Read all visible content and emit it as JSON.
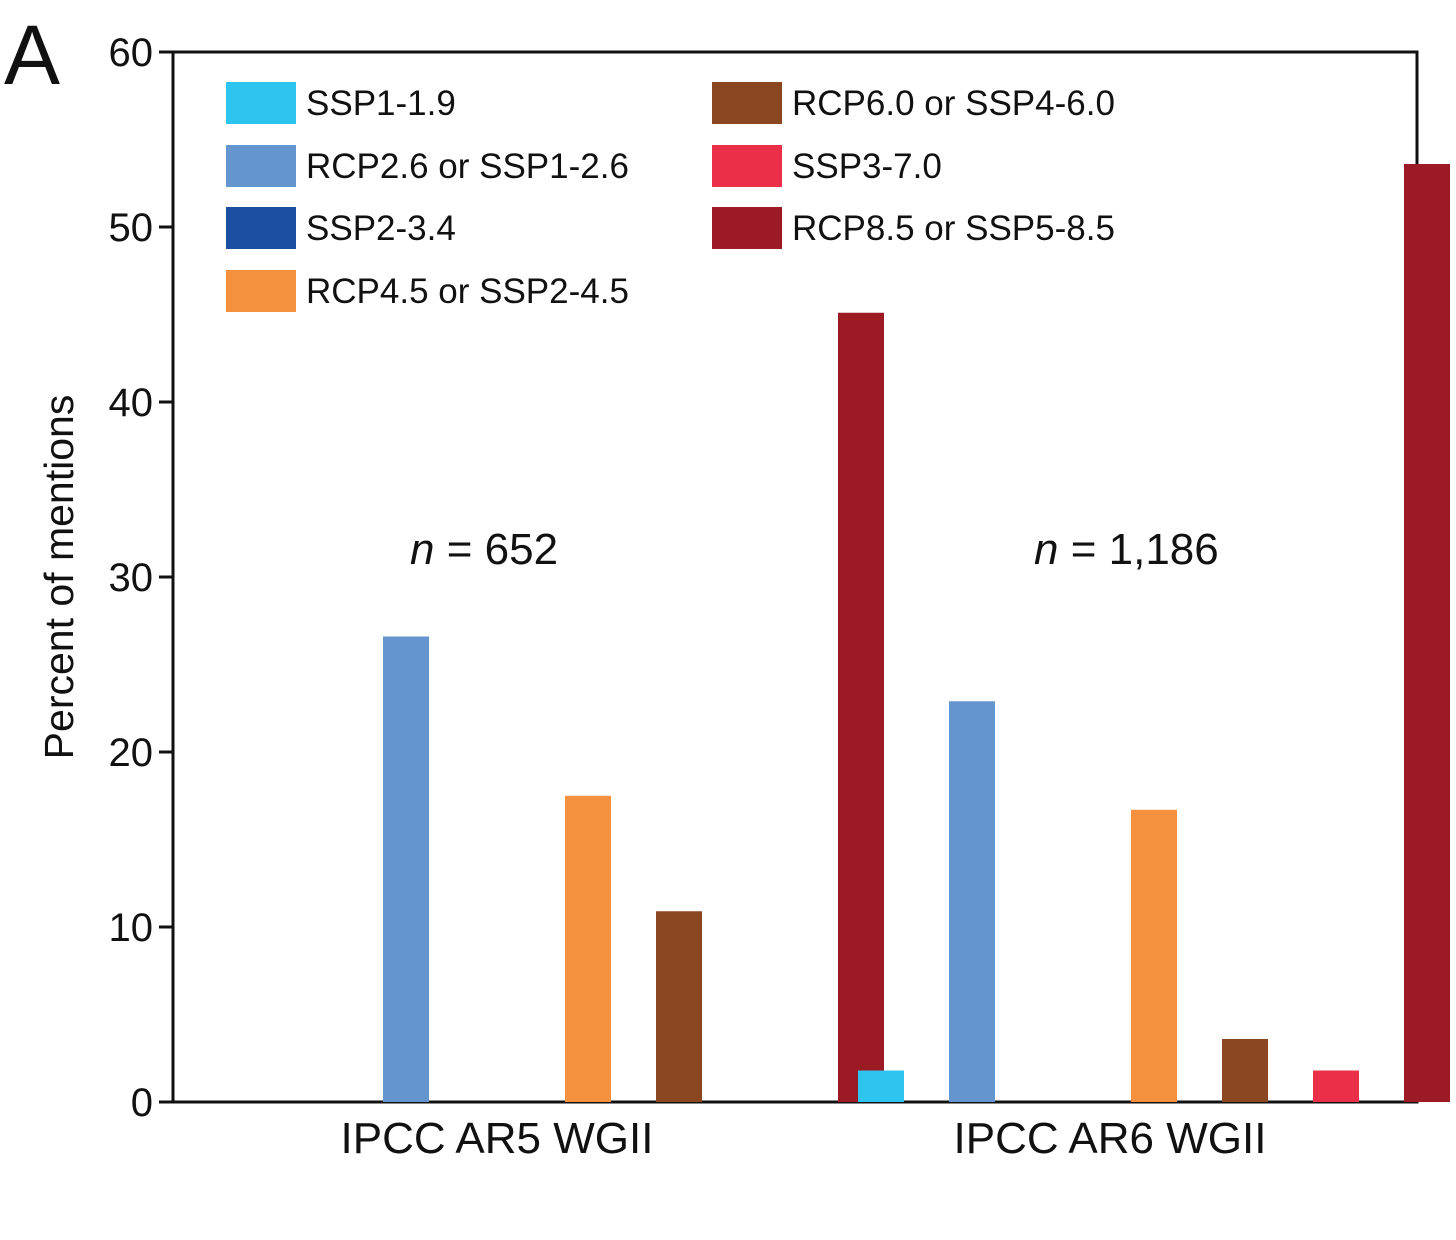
{
  "panel_letter": "A",
  "chart_data": {
    "type": "bar",
    "ylabel": "Percent of mentions",
    "xlabel": "",
    "ylim": [
      0,
      60
    ],
    "yticks": [
      0,
      10,
      20,
      30,
      40,
      50,
      60
    ],
    "grid": false,
    "legend_position": "top-left",
    "categories": [
      "IPCC AR5 WGII",
      "IPCC AR6 WGII"
    ],
    "annotations": [
      {
        "italic": "n",
        "rest": " = 652",
        "category": "IPCC AR5 WGII"
      },
      {
        "italic": "n",
        "rest": " = 1,186",
        "category": "IPCC AR6 WGII"
      }
    ],
    "series": [
      {
        "name": "SSP1-1.9",
        "color": "#2ec4f0",
        "values": [
          0,
          1.8
        ]
      },
      {
        "name": "RCP2.6 or SSP1-2.6",
        "color": "#6495cf",
        "values": [
          26.6,
          22.9
        ]
      },
      {
        "name": "SSP2-3.4",
        "color": "#1c4fa0",
        "values": [
          0,
          0
        ]
      },
      {
        "name": "RCP4.5 or SSP2-4.5",
        "color": "#f5913e",
        "values": [
          17.5,
          16.7
        ]
      },
      {
        "name": "RCP6.0 or SSP4-6.0",
        "color": "#8b4722",
        "values": [
          10.9,
          3.6
        ]
      },
      {
        "name": "SSP3-7.0",
        "color": "#ec2f48",
        "values": [
          0,
          1.8
        ]
      },
      {
        "name": "RCP8.5 or SSP5-8.5",
        "color": "#9c1a24",
        "values": [
          45.1,
          53.6
        ]
      }
    ]
  }
}
